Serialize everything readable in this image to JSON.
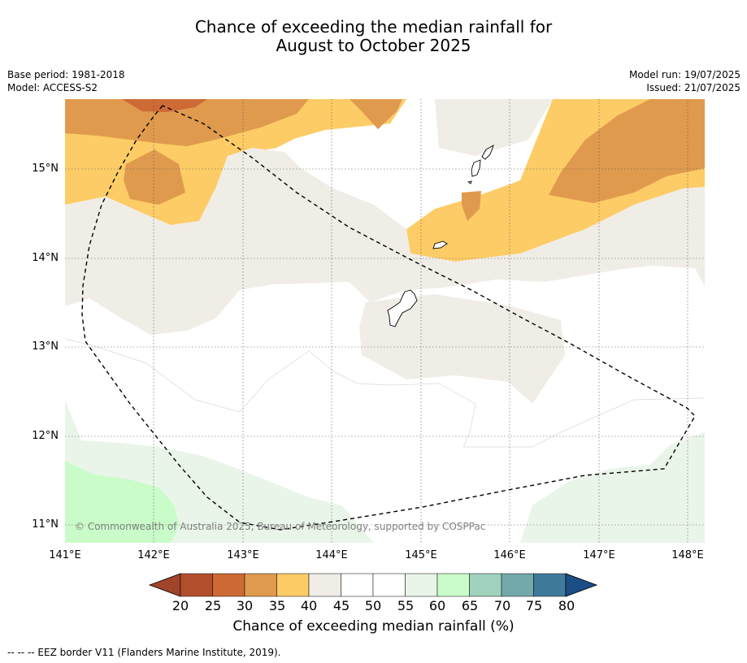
{
  "title_line1": "Chance of exceeding the median rainfall for",
  "title_line2": "August to October 2025",
  "meta": {
    "base_period": "Base period: 1981-2018",
    "model": "Model: ACCESS-S2",
    "model_run": "Model run: 19/07/2025",
    "issued": "Issued: 21/07/2025"
  },
  "map": {
    "lat_labels": [
      "15°N",
      "14°N",
      "13°N",
      "12°N",
      "11°N"
    ],
    "lon_labels": [
      "141°E",
      "142°E",
      "143°E",
      "144°E",
      "145°E",
      "146°E",
      "147°E",
      "148°E"
    ],
    "copyright": "© Commonwealth of Australia 2025, Bureau of Meteorology, supported by COSPPac"
  },
  "colorbar": {
    "ticks": [
      "20",
      "25",
      "30",
      "35",
      "40",
      "45",
      "50",
      "55",
      "60",
      "65",
      "70",
      "75",
      "80"
    ],
    "colors": [
      "#a0442a",
      "#b24f2b",
      "#cd6a35",
      "#e09a4d",
      "#fdcc66",
      "#f0ede7",
      "#ffffff",
      "#ffffff",
      "#eaf5ea",
      "#c9fcc9",
      "#9fd3be",
      "#73a9ab",
      "#3f7a9b",
      "#1b4d86"
    ],
    "label": "Chance of exceeding median rainfall (%)"
  },
  "footnote": "--  --  -- EEZ border V11 (Flanders Marine Institute, 2019)."
}
